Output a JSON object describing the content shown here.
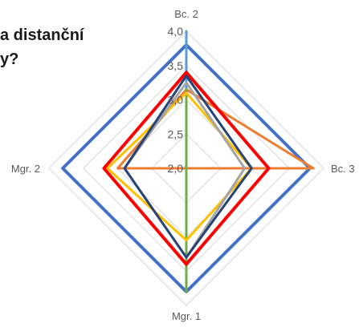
{
  "title_fragment_line1": "a distanční",
  "title_fragment_line2": "y?",
  "chart_data": {
    "type": "radar",
    "axes": [
      "Bc. 2",
      "Bc. 3",
      "Mgr. 1",
      "Mgr. 2"
    ],
    "ticks": [
      "2,0",
      "2,5",
      "3,0",
      "3,5",
      "4,0"
    ],
    "range": [
      2.0,
      4.0
    ],
    "grid": true,
    "series": [
      {
        "values": [
          3.8,
          3.8,
          3.8,
          3.8
        ],
        "color": "#4472C4",
        "width": 4
      },
      {
        "values": [
          4.0,
          2.0,
          2.0,
          2.0
        ],
        "color": "#5B9BD5",
        "width": 3
      },
      {
        "values": [
          3.15,
          3.85,
          2.0,
          3.0
        ],
        "color": "#ED7D31",
        "width": 3
      },
      {
        "values": [
          3.15,
          2.0,
          3.8,
          2.0
        ],
        "color": "#70AD47",
        "width": 3
      },
      {
        "values": [
          3.1,
          2.95,
          3.05,
          3.15
        ],
        "color": "#FFC000",
        "width": 3
      },
      {
        "values": [
          3.25,
          2.85,
          3.3,
          2.9
        ],
        "color": "#A5A5A5",
        "width": 3
      },
      {
        "values": [
          3.4,
          3.2,
          3.4,
          3.2
        ],
        "color": "#FF0000",
        "width": 4
      },
      {
        "values": [
          3.35,
          2.95,
          3.3,
          2.9
        ],
        "color": "#264478",
        "width": 3
      }
    ]
  }
}
